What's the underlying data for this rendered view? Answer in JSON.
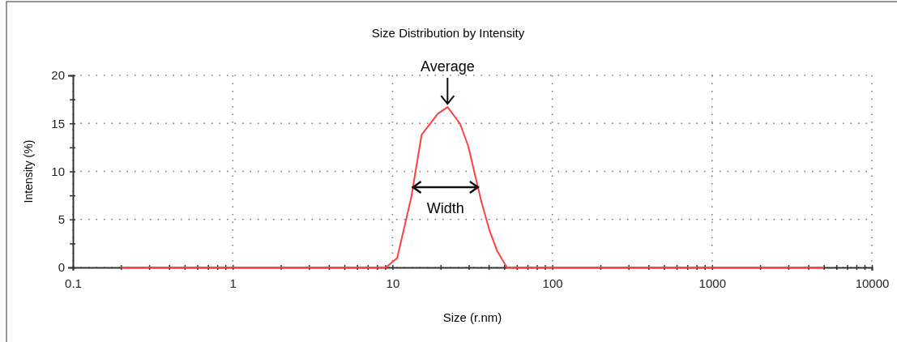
{
  "chart_data": {
    "type": "line",
    "title": "Size Distribution by Intensity",
    "xlabel": "Size (r.nm)",
    "ylabel": "Intensity (%)",
    "log": "x",
    "xlim": [
      0.1,
      10000
    ],
    "ylim": [
      0,
      20
    ],
    "xticks": [
      0.1,
      {
        "value": 0.2,
        "label": null
      },
      {
        "value": 0.3,
        "label": null
      },
      {
        "value": 0.4,
        "label": null
      },
      {
        "value": 0.5,
        "label": null
      },
      {
        "value": 0.6,
        "label": null
      },
      {
        "value": 0.7,
        "label": null
      },
      {
        "value": 0.8,
        "label": null
      },
      {
        "value": 0.9,
        "label": null
      },
      1,
      {
        "value": 2,
        "label": null
      },
      {
        "value": 3,
        "label": null
      },
      {
        "value": 4,
        "label": null
      },
      {
        "value": 5,
        "label": null
      },
      {
        "value": 6,
        "label": null
      },
      {
        "value": 7,
        "label": null
      },
      {
        "value": 8,
        "label": null
      },
      {
        "value": 9,
        "label": null
      },
      10,
      {
        "value": 20,
        "label": null
      },
      {
        "value": 30,
        "label": null
      },
      {
        "value": 40,
        "label": null
      },
      {
        "value": 50,
        "label": null
      },
      {
        "value": 60,
        "label": null
      },
      {
        "value": 70,
        "label": null
      },
      {
        "value": 80,
        "label": null
      },
      {
        "value": 90,
        "label": null
      },
      100,
      {
        "value": 200,
        "label": null
      },
      {
        "value": 300,
        "label": null
      },
      {
        "value": 400,
        "label": null
      },
      {
        "value": 500,
        "label": null
      },
      {
        "value": 600,
        "label": null
      },
      {
        "value": 700,
        "label": null
      },
      {
        "value": 800,
        "label": null
      },
      {
        "value": 900,
        "label": null
      },
      1000,
      {
        "value": 2000,
        "label": null
      },
      {
        "value": 3000,
        "label": null
      },
      {
        "value": 4000,
        "label": null
      },
      {
        "value": 5000,
        "label": null
      },
      {
        "value": 6000,
        "label": null
      },
      {
        "value": 7000,
        "label": null
      },
      {
        "value": 8000,
        "label": null
      },
      {
        "value": 9000,
        "label": null
      },
      10000
    ],
    "yticks": [
      0,
      {
        "value": 2.5,
        "label": null
      },
      5,
      {
        "value": 7.5,
        "label": null
      },
      10,
      {
        "value": 12.5,
        "label": null
      },
      15,
      {
        "value": 17.5,
        "label": null
      },
      20
    ],
    "grid": true,
    "marker": "none",
    "line_style": "solid",
    "series": [
      {
        "color": "#ff4040",
        "x": [
          0.2,
          9.1,
          10.7,
          13.1,
          15.2,
          19.2,
          22.1,
          26.4,
          29.7,
          35.8,
          40.2,
          45.2,
          52,
          5000
        ],
        "values": [
          0,
          0,
          1.0,
          7.3,
          13.8,
          16.0,
          16.7,
          15.0,
          12.7,
          7.0,
          4.0,
          1.7,
          0,
          0
        ]
      }
    ],
    "annotations": [
      {
        "text": "Average",
        "x": 22.1,
        "y": 16.7
      },
      "Width"
    ]
  }
}
